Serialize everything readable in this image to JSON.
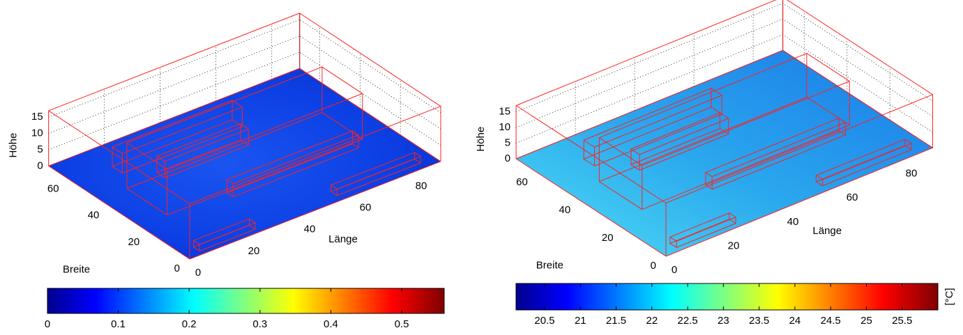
{
  "chart_data": [
    {
      "type": "surface3d",
      "x_label": "Länge",
      "y_label": "Breite",
      "z_label": "Höhe",
      "xlim": [
        0,
        90
      ],
      "ylim": [
        0,
        70
      ],
      "zlim": [
        0,
        17
      ],
      "xticks": [
        0,
        20,
        40,
        60,
        80
      ],
      "yticks": [
        0,
        20,
        40,
        60
      ],
      "zticks": [
        0,
        5,
        10,
        15
      ],
      "clim": [
        0,
        0.56
      ],
      "cticks": [
        0,
        0.1,
        0.2,
        0.3,
        0.4,
        0.5
      ],
      "grid": true
    },
    {
      "type": "surface3d",
      "x_label": "Länge",
      "y_label": "Breite",
      "z_label": "Höhe",
      "xlim": [
        0,
        90
      ],
      "ylim": [
        0,
        70
      ],
      "zlim": [
        0,
        17
      ],
      "xticks": [
        0,
        20,
        40,
        60,
        80
      ],
      "yticks": [
        0,
        20,
        40,
        60
      ],
      "zticks": [
        0,
        5,
        10,
        15
      ],
      "clim": [
        20.1,
        26
      ],
      "cticks": [
        20.5,
        21,
        21.5,
        22,
        22.5,
        23,
        23.5,
        24,
        24.5,
        25,
        25.5
      ],
      "colorbar_label": "[°C]",
      "grid": true
    }
  ]
}
